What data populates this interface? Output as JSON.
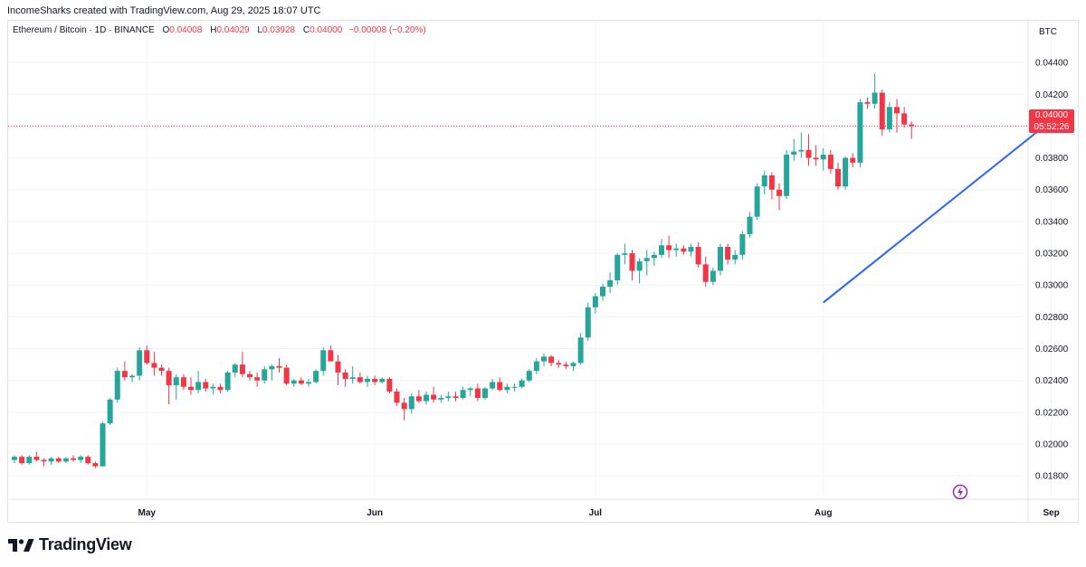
{
  "header": {
    "created_by": "IncomeSharks created with TradingView.com, Aug 29, 2025 18:07 UTC"
  },
  "legend": {
    "symbol": "Ethereum / Bitcoin · 1D · BINANCE",
    "open_label": "O",
    "open": "0.04008",
    "high_label": "H",
    "high": "0.04029",
    "low_label": "L",
    "low": "0.03928",
    "close_label": "C",
    "close": "0.04000",
    "change": "−0.00008 (−0.20%)"
  },
  "currency": "BTC",
  "last_price": {
    "price": "0.04000",
    "countdown": "05:52:26"
  },
  "brand": {
    "name": "TradingView"
  },
  "colors": {
    "up": "#26a69a",
    "down": "#f23645",
    "trendline": "#2962ff",
    "grid": "#f0f3fa"
  },
  "chart_data": {
    "type": "candlestick",
    "x_labels": [
      "May",
      "Jun",
      "Jul",
      "Aug",
      "Sep"
    ],
    "y_ticks": [
      "0.04400",
      "0.04200",
      "0.04000",
      "0.03800",
      "0.03600",
      "0.03400",
      "0.03200",
      "0.03000",
      "0.02800",
      "0.02600",
      "0.02400",
      "0.02200",
      "0.02000",
      "0.01800"
    ],
    "ylim": [
      0.0175,
      0.0452
    ],
    "x_start_date": "2025-04-13",
    "label_dates": [
      "2025-05-01",
      "2025-06-01",
      "2025-07-01",
      "2025-08-01",
      "2025-09-01"
    ],
    "candles": [
      [
        0.019,
        0.0193,
        0.0188,
        0.0192
      ],
      [
        0.0192,
        0.0193,
        0.0187,
        0.0188
      ],
      [
        0.0188,
        0.0193,
        0.0187,
        0.0192
      ],
      [
        0.0192,
        0.0195,
        0.0189,
        0.019
      ],
      [
        0.019,
        0.0191,
        0.0186,
        0.0189
      ],
      [
        0.0189,
        0.0192,
        0.0187,
        0.0191
      ],
      [
        0.0191,
        0.0192,
        0.0188,
        0.0189
      ],
      [
        0.0189,
        0.0192,
        0.0188,
        0.0191
      ],
      [
        0.0191,
        0.0193,
        0.0189,
        0.019
      ],
      [
        0.019,
        0.0193,
        0.0188,
        0.0192
      ],
      [
        0.0192,
        0.0193,
        0.0187,
        0.0188
      ],
      [
        0.0188,
        0.0189,
        0.0185,
        0.0186
      ],
      [
        0.0186,
        0.0214,
        0.0186,
        0.0213
      ],
      [
        0.0213,
        0.0229,
        0.0212,
        0.0228
      ],
      [
        0.0228,
        0.0248,
        0.0226,
        0.0246
      ],
      [
        0.0246,
        0.0252,
        0.024,
        0.0242
      ],
      [
        0.0242,
        0.0244,
        0.0239,
        0.0243
      ],
      [
        0.0243,
        0.0261,
        0.024,
        0.0259
      ],
      [
        0.0259,
        0.0262,
        0.025,
        0.0251
      ],
      [
        0.0251,
        0.0258,
        0.0243,
        0.0248
      ],
      [
        0.0248,
        0.025,
        0.0243,
        0.0246
      ],
      [
        0.0246,
        0.0248,
        0.0225,
        0.0237
      ],
      [
        0.0237,
        0.0244,
        0.0228,
        0.0242
      ],
      [
        0.0242,
        0.0244,
        0.0234,
        0.0236
      ],
      [
        0.0236,
        0.0242,
        0.0231,
        0.0234
      ],
      [
        0.0234,
        0.0246,
        0.0232,
        0.0239
      ],
      [
        0.0239,
        0.0241,
        0.0233,
        0.0235
      ],
      [
        0.0235,
        0.0238,
        0.0231,
        0.0236
      ],
      [
        0.0236,
        0.0238,
        0.0232,
        0.0234
      ],
      [
        0.0234,
        0.0246,
        0.0233,
        0.0245
      ],
      [
        0.0245,
        0.0251,
        0.0242,
        0.025
      ],
      [
        0.025,
        0.0258,
        0.0242,
        0.0244
      ],
      [
        0.0244,
        0.0246,
        0.024,
        0.0242
      ],
      [
        0.0242,
        0.0245,
        0.0236,
        0.024
      ],
      [
        0.024,
        0.0249,
        0.0238,
        0.0247
      ],
      [
        0.0247,
        0.025,
        0.024,
        0.0249
      ],
      [
        0.0249,
        0.0254,
        0.0245,
        0.0248
      ],
      [
        0.0248,
        0.025,
        0.0237,
        0.0238
      ],
      [
        0.0238,
        0.0241,
        0.0236,
        0.024
      ],
      [
        0.024,
        0.0242,
        0.0237,
        0.0238
      ],
      [
        0.0238,
        0.0241,
        0.0236,
        0.0239
      ],
      [
        0.0239,
        0.0247,
        0.0238,
        0.0246
      ],
      [
        0.0246,
        0.0261,
        0.0243,
        0.0259
      ],
      [
        0.0259,
        0.0262,
        0.0252,
        0.0252
      ],
      [
        0.0252,
        0.0256,
        0.0237,
        0.0245
      ],
      [
        0.0245,
        0.0247,
        0.0236,
        0.0241
      ],
      [
        0.0241,
        0.0249,
        0.0238,
        0.0242
      ],
      [
        0.0242,
        0.0245,
        0.0238,
        0.0239
      ],
      [
        0.0239,
        0.0243,
        0.0236,
        0.0241
      ],
      [
        0.0241,
        0.0243,
        0.0237,
        0.0239
      ],
      [
        0.0239,
        0.0242,
        0.0238,
        0.0241
      ],
      [
        0.0241,
        0.0242,
        0.0232,
        0.0233
      ],
      [
        0.0233,
        0.0235,
        0.0224,
        0.0226
      ],
      [
        0.0226,
        0.0229,
        0.0215,
        0.0222
      ],
      [
        0.0222,
        0.0232,
        0.0219,
        0.023
      ],
      [
        0.023,
        0.0234,
        0.0226,
        0.0227
      ],
      [
        0.0227,
        0.0233,
        0.0225,
        0.0231
      ],
      [
        0.0231,
        0.0236,
        0.0226,
        0.0228
      ],
      [
        0.0228,
        0.0231,
        0.0226,
        0.0229
      ],
      [
        0.0229,
        0.0233,
        0.0227,
        0.023
      ],
      [
        0.023,
        0.0233,
        0.0227,
        0.0229
      ],
      [
        0.0229,
        0.0236,
        0.0228,
        0.0234
      ],
      [
        0.0234,
        0.0236,
        0.023,
        0.0235
      ],
      [
        0.0235,
        0.0238,
        0.0227,
        0.0229
      ],
      [
        0.0229,
        0.0236,
        0.0228,
        0.0235
      ],
      [
        0.0235,
        0.0241,
        0.0234,
        0.0239
      ],
      [
        0.0239,
        0.0242,
        0.0233,
        0.0234
      ],
      [
        0.0234,
        0.0238,
        0.0232,
        0.0236
      ],
      [
        0.0236,
        0.0238,
        0.0233,
        0.0236
      ],
      [
        0.0236,
        0.0241,
        0.0235,
        0.024
      ],
      [
        0.024,
        0.0247,
        0.0239,
        0.0246
      ],
      [
        0.0246,
        0.0254,
        0.0244,
        0.0252
      ],
      [
        0.0252,
        0.0257,
        0.0249,
        0.0255
      ],
      [
        0.0255,
        0.0256,
        0.0249,
        0.0251
      ],
      [
        0.0251,
        0.0253,
        0.0248,
        0.025
      ],
      [
        0.025,
        0.0252,
        0.0247,
        0.0249
      ],
      [
        0.0249,
        0.0252,
        0.0246,
        0.0251
      ],
      [
        0.0251,
        0.027,
        0.025,
        0.0267
      ],
      [
        0.0267,
        0.0289,
        0.0265,
        0.0286
      ],
      [
        0.0286,
        0.0295,
        0.0282,
        0.0293
      ],
      [
        0.0293,
        0.0301,
        0.029,
        0.0299
      ],
      [
        0.0299,
        0.0308,
        0.0295,
        0.0303
      ],
      [
        0.0303,
        0.032,
        0.03,
        0.0319
      ],
      [
        0.0319,
        0.0326,
        0.0313,
        0.032
      ],
      [
        0.032,
        0.0322,
        0.0303,
        0.0309
      ],
      [
        0.0309,
        0.0317,
        0.0301,
        0.0315
      ],
      [
        0.0315,
        0.0322,
        0.0306,
        0.0317
      ],
      [
        0.0317,
        0.0321,
        0.0312,
        0.0319
      ],
      [
        0.0319,
        0.0329,
        0.0317,
        0.0325
      ],
      [
        0.0325,
        0.0331,
        0.0317,
        0.0322
      ],
      [
        0.0322,
        0.0326,
        0.0318,
        0.0323
      ],
      [
        0.0323,
        0.0325,
        0.0319,
        0.0321
      ],
      [
        0.0321,
        0.0326,
        0.0318,
        0.0324
      ],
      [
        0.0324,
        0.0327,
        0.0311,
        0.0313
      ],
      [
        0.0313,
        0.0318,
        0.0299,
        0.0302
      ],
      [
        0.0302,
        0.0311,
        0.03,
        0.0309
      ],
      [
        0.0309,
        0.0326,
        0.0306,
        0.0324
      ],
      [
        0.0324,
        0.0326,
        0.0313,
        0.0316
      ],
      [
        0.0316,
        0.0322,
        0.0313,
        0.0319
      ],
      [
        0.0319,
        0.0334,
        0.0316,
        0.0332
      ],
      [
        0.0332,
        0.0346,
        0.033,
        0.0343
      ],
      [
        0.0343,
        0.0364,
        0.0341,
        0.0362
      ],
      [
        0.0362,
        0.0372,
        0.0357,
        0.0369
      ],
      [
        0.0369,
        0.0371,
        0.0354,
        0.036
      ],
      [
        0.036,
        0.0364,
        0.0347,
        0.0356
      ],
      [
        0.0356,
        0.0385,
        0.0354,
        0.0382
      ],
      [
        0.0382,
        0.0392,
        0.0378,
        0.0384
      ],
      [
        0.0384,
        0.0396,
        0.038,
        0.0385
      ],
      [
        0.0385,
        0.0395,
        0.0375,
        0.038
      ],
      [
        0.038,
        0.0388,
        0.0375,
        0.0379
      ],
      [
        0.0379,
        0.0386,
        0.0372,
        0.0382
      ],
      [
        0.0382,
        0.0385,
        0.037,
        0.0373
      ],
      [
        0.0373,
        0.0377,
        0.036,
        0.0362
      ],
      [
        0.0362,
        0.0381,
        0.036,
        0.038
      ],
      [
        0.038,
        0.0383,
        0.0374,
        0.0377
      ],
      [
        0.0377,
        0.0417,
        0.0374,
        0.0415
      ],
      [
        0.0415,
        0.0418,
        0.0411,
        0.0414
      ],
      [
        0.0414,
        0.0433,
        0.0411,
        0.0421
      ],
      [
        0.0421,
        0.0423,
        0.0394,
        0.0398
      ],
      [
        0.0398,
        0.0415,
        0.0396,
        0.0412
      ],
      [
        0.0412,
        0.0417,
        0.0396,
        0.0408
      ],
      [
        0.0408,
        0.0412,
        0.0399,
        0.0401
      ],
      [
        0.0401,
        0.0403,
        0.0392,
        0.04
      ]
    ],
    "trendline": {
      "start_date": "2025-08-01",
      "start_price": 0.0289,
      "end_date": "2025-09-01",
      "end_price": 0.04035
    }
  }
}
